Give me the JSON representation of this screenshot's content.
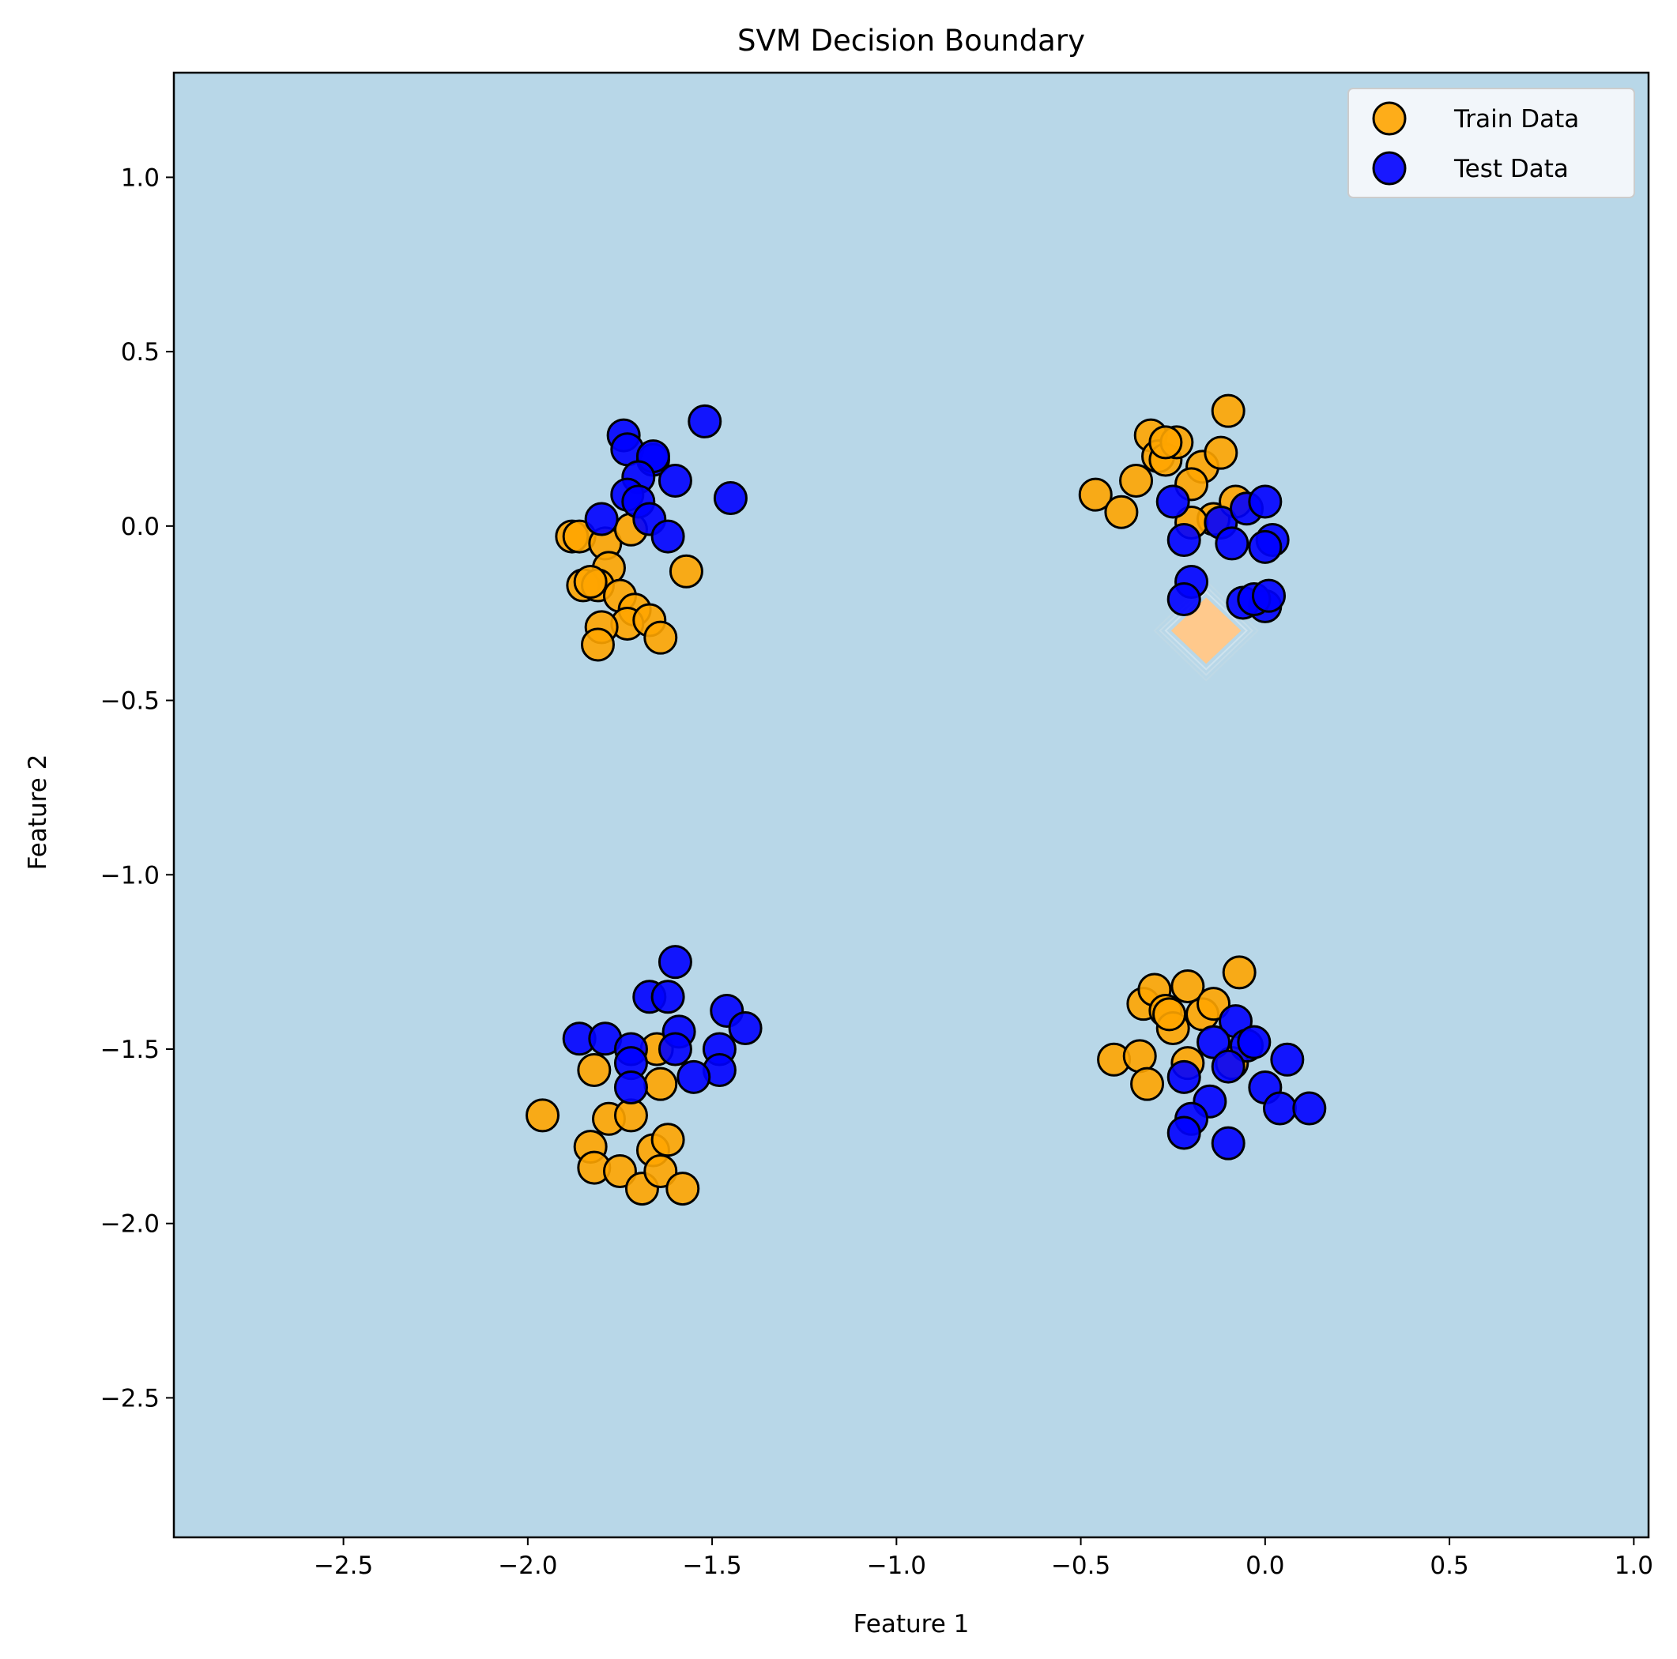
{
  "chart_data": {
    "type": "scatter",
    "title": "SVM Decision Boundary",
    "xlabel": "Feature 1",
    "ylabel": "Feature 2",
    "xlim": [
      -2.96,
      1.04
    ],
    "ylim": [
      -2.9,
      1.3
    ],
    "xticks": [
      -2.5,
      -2.0,
      -1.5,
      -1.0,
      -0.5,
      0.0,
      0.5,
      1.0
    ],
    "yticks": [
      1.0,
      0.5,
      0.0,
      -0.5,
      -1.0,
      -1.5,
      -2.0,
      -2.5
    ],
    "xtick_labels": [
      "−2.5",
      "−2.0",
      "−1.5",
      "−1.0",
      "−0.5",
      "0.0",
      "0.5",
      "1.0"
    ],
    "ytick_labels": [
      "1.0",
      "0.5",
      "0.0",
      "−0.5",
      "−1.0",
      "−1.5",
      "−2.0",
      "−2.5"
    ],
    "grid": false,
    "legend_position": "top-right",
    "background_region_color": "#b8d7e8",
    "boundary_region": {
      "color": "#ffc98c",
      "center": [
        -0.16,
        -0.3
      ],
      "half_width": 0.095,
      "half_height": 0.095
    },
    "series": [
      {
        "name": "Train Data",
        "color": "#ffa500",
        "points": [
          [
            -1.88,
            -0.03
          ],
          [
            -1.86,
            -0.03
          ],
          [
            -1.79,
            -0.05
          ],
          [
            -1.78,
            -0.12
          ],
          [
            -1.72,
            -0.01
          ],
          [
            -1.85,
            -0.17
          ],
          [
            -1.81,
            -0.17
          ],
          [
            -1.83,
            -0.16
          ],
          [
            -1.75,
            -0.2
          ],
          [
            -1.71,
            -0.24
          ],
          [
            -1.73,
            -0.28
          ],
          [
            -1.67,
            -0.27
          ],
          [
            -1.8,
            -0.29
          ],
          [
            -1.81,
            -0.34
          ],
          [
            -1.64,
            -0.32
          ],
          [
            -1.57,
            -0.13
          ],
          [
            -0.46,
            0.09
          ],
          [
            -0.39,
            0.04
          ],
          [
            -0.35,
            0.13
          ],
          [
            -0.31,
            0.26
          ],
          [
            -0.29,
            0.2
          ],
          [
            -0.27,
            0.19
          ],
          [
            -0.24,
            0.24
          ],
          [
            -0.27,
            0.24
          ],
          [
            -0.17,
            0.17
          ],
          [
            -0.2,
            0.12
          ],
          [
            -0.12,
            0.21
          ],
          [
            -0.1,
            0.33
          ],
          [
            -0.14,
            0.02
          ],
          [
            -0.2,
            0.01
          ],
          [
            -0.08,
            0.07
          ],
          [
            -1.96,
            -1.69
          ],
          [
            -1.82,
            -1.56
          ],
          [
            -1.78,
            -1.7
          ],
          [
            -1.72,
            -1.69
          ],
          [
            -1.83,
            -1.78
          ],
          [
            -1.82,
            -1.84
          ],
          [
            -1.75,
            -1.85
          ],
          [
            -1.69,
            -1.9
          ],
          [
            -1.66,
            -1.79
          ],
          [
            -1.64,
            -1.85
          ],
          [
            -1.62,
            -1.76
          ],
          [
            -1.58,
            -1.9
          ],
          [
            -1.65,
            -1.5
          ],
          [
            -1.64,
            -1.6
          ],
          [
            -0.41,
            -1.53
          ],
          [
            -0.34,
            -1.52
          ],
          [
            -0.32,
            -1.6
          ],
          [
            -0.33,
            -1.37
          ],
          [
            -0.3,
            -1.33
          ],
          [
            -0.27,
            -1.39
          ],
          [
            -0.25,
            -1.44
          ],
          [
            -0.26,
            -1.4
          ],
          [
            -0.21,
            -1.32
          ],
          [
            -0.17,
            -1.4
          ],
          [
            -0.14,
            -1.37
          ],
          [
            -0.07,
            -1.28
          ],
          [
            -0.21,
            -1.54
          ],
          [
            -0.09,
            -1.54
          ]
        ]
      },
      {
        "name": "Test Data",
        "color": "#0000ff",
        "points": [
          [
            -1.74,
            0.26
          ],
          [
            -1.73,
            0.22
          ],
          [
            -1.66,
            0.19
          ],
          [
            -1.66,
            0.2
          ],
          [
            -1.7,
            0.14
          ],
          [
            -1.6,
            0.13
          ],
          [
            -1.52,
            0.3
          ],
          [
            -1.45,
            0.08
          ],
          [
            -1.73,
            0.09
          ],
          [
            -1.7,
            0.07
          ],
          [
            -1.67,
            0.02
          ],
          [
            -1.8,
            0.02
          ],
          [
            -1.62,
            -0.03
          ],
          [
            -0.25,
            0.07
          ],
          [
            -0.22,
            -0.04
          ],
          [
            -0.2,
            -0.16
          ],
          [
            -0.22,
            -0.21
          ],
          [
            -0.12,
            0.01
          ],
          [
            -0.09,
            -0.05
          ],
          [
            -0.05,
            0.05
          ],
          [
            0.0,
            0.07
          ],
          [
            0.02,
            -0.04
          ],
          [
            0.0,
            -0.06
          ],
          [
            0.0,
            -0.23
          ],
          [
            -0.06,
            -0.22
          ],
          [
            -0.03,
            -0.21
          ],
          [
            0.01,
            -0.2
          ],
          [
            -1.6,
            -1.25
          ],
          [
            -1.67,
            -1.35
          ],
          [
            -1.62,
            -1.35
          ],
          [
            -1.46,
            -1.39
          ],
          [
            -1.41,
            -1.44
          ],
          [
            -1.59,
            -1.45
          ],
          [
            -1.6,
            -1.5
          ],
          [
            -1.48,
            -1.5
          ],
          [
            -1.48,
            -1.56
          ],
          [
            -1.55,
            -1.58
          ],
          [
            -1.86,
            -1.47
          ],
          [
            -1.79,
            -1.47
          ],
          [
            -1.72,
            -1.5
          ],
          [
            -1.72,
            -1.54
          ],
          [
            -1.72,
            -1.61
          ],
          [
            -0.08,
            -1.42
          ],
          [
            -0.14,
            -1.48
          ],
          [
            -0.05,
            -1.49
          ],
          [
            -0.03,
            -1.48
          ],
          [
            -0.1,
            -1.55
          ],
          [
            0.06,
            -1.53
          ],
          [
            -0.22,
            -1.58
          ],
          [
            -0.15,
            -1.65
          ],
          [
            0.0,
            -1.61
          ],
          [
            0.04,
            -1.67
          ],
          [
            0.12,
            -1.67
          ],
          [
            -0.2,
            -1.7
          ],
          [
            -0.22,
            -1.74
          ],
          [
            -0.1,
            -1.77
          ]
        ]
      }
    ]
  }
}
